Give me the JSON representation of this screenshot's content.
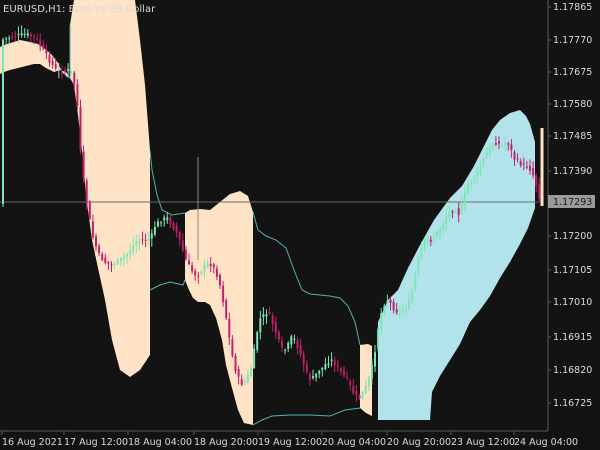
{
  "window": {
    "symbol": "EURUSD,H1",
    "description": "Euro vs US Dollar"
  },
  "price_axis": {
    "labels": [
      "1.17865",
      "1.17770",
      "1.17675",
      "1.17580",
      "1.17485",
      "1.17390",
      "1.17200",
      "1.17105",
      "1.17010",
      "1.16915",
      "1.16820",
      "1.16725"
    ],
    "current_price": "1.17293"
  },
  "time_axis": {
    "labels": [
      "16 Aug 2021",
      "17 Aug 12:00",
      "18 Aug 04:00",
      "18 Aug 20:00",
      "19 Aug 12:00",
      "20 Aug 04:00",
      "20 Aug 20:00",
      "23 Aug 12:00",
      "24 Aug 04:00"
    ]
  },
  "colors": {
    "background": "#131313",
    "bull_candle": "#7fe5b4",
    "bear_candle": "#c0206a",
    "peach_channel": "#ffe3c6",
    "blue_channel": "#b2e3ea",
    "channel_line": "#4fb3b3",
    "grid_line": "#555555",
    "axis_text": "#d9d9d9",
    "current_price_box": "#9a9a9a"
  },
  "icons": {
    "crosshair": "crosshair-icon"
  },
  "chart_data": {
    "type": "candlestick",
    "symbol": "EURUSD,H1",
    "title": "EURUSD,H1:  Euro vs US Dollar",
    "ylim": [
      1.1665,
      1.1792
    ],
    "ytick_labels": [
      "1.17865",
      "1.17770",
      "1.17675",
      "1.17580",
      "1.17485",
      "1.17390",
      "1.17200",
      "1.17105",
      "1.17010",
      "1.16915",
      "1.16820",
      "1.16725"
    ],
    "xtick_labels": [
      "16 Aug 2021",
      "17 Aug 12:00",
      "18 Aug 04:00",
      "18 Aug 20:00",
      "19 Aug 12:00",
      "20 Aug 04:00",
      "20 Aug 20:00",
      "23 Aug 12:00",
      "24 Aug 04:00"
    ],
    "last_price": 1.17293,
    "grid": false
  }
}
